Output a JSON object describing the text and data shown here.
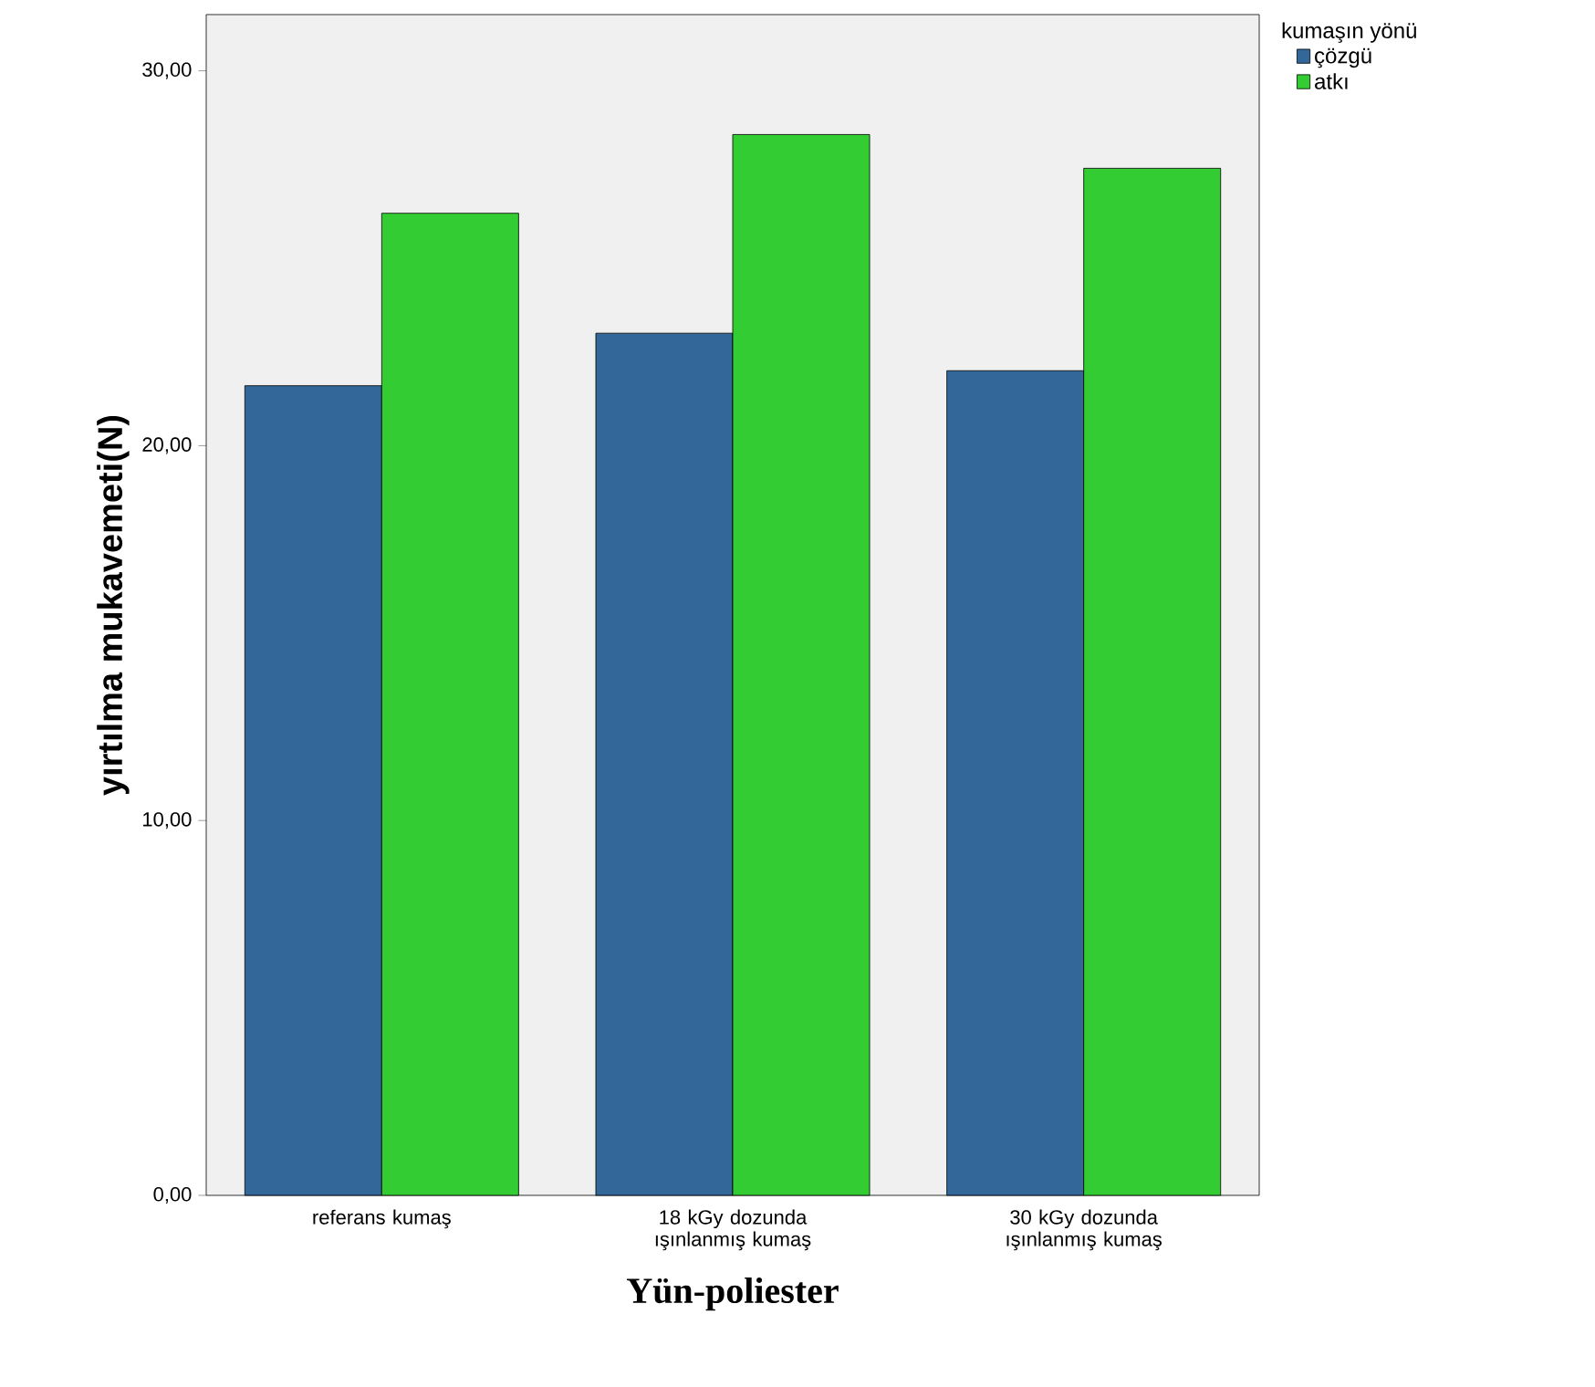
{
  "chart_data": {
    "type": "bar",
    "xlabel": "Yün-poliester",
    "ylabel": "yırtılma mukavemeti(N)",
    "legend_title": "kumaşın yönü",
    "categories": [
      "referans kumaş",
      "18 kGy dozunda ışınlanmış kumaş",
      "30 kGy dozunda ışınlanmış kumaş"
    ],
    "series": [
      {
        "name": "çözgü",
        "color": "#336699",
        "values": [
          21.6,
          23.0,
          22.0
        ]
      },
      {
        "name": "atkı",
        "color": "#33cc33",
        "values": [
          26.2,
          28.3,
          27.4
        ]
      }
    ],
    "ylim": [
      0,
      31.5
    ],
    "yticks": [
      {
        "value": 0,
        "label": "0,00"
      },
      {
        "value": 10,
        "label": "10,00"
      },
      {
        "value": 20,
        "label": "20,00"
      },
      {
        "value": 30,
        "label": "30,00"
      }
    ],
    "grid": false,
    "legend": "top right"
  }
}
